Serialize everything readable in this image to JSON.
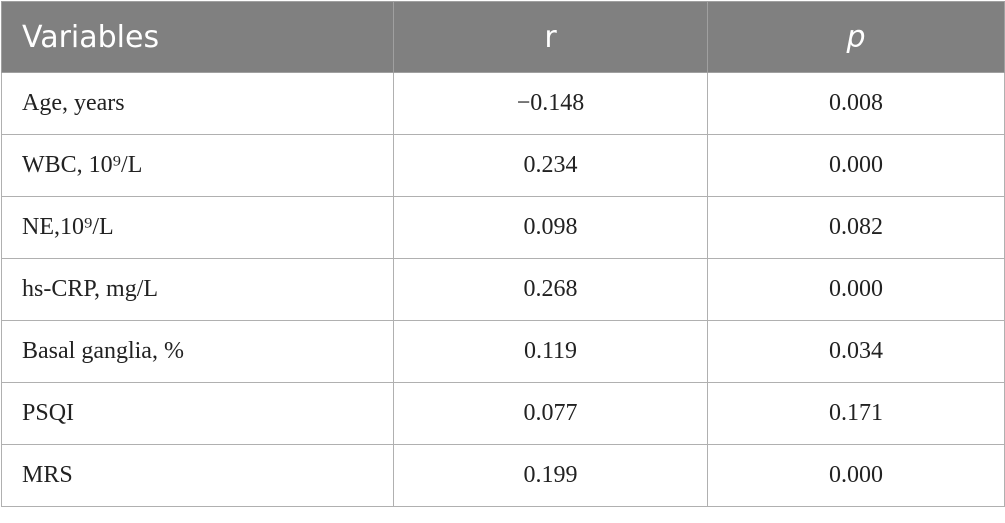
{
  "table": {
    "header": [
      "Variables",
      "r",
      "p"
    ],
    "rows": [
      [
        "Age, years",
        "−0.148",
        "0.008"
      ],
      [
        "WBC, 10⁹/L",
        "0.234",
        "0.000"
      ],
      [
        "NE,10⁹/L",
        "0.098",
        "0.082"
      ],
      [
        "hs-CRP, mg/L",
        "0.268",
        "0.000"
      ],
      [
        "Basal ganglia, %",
        "0.119",
        "0.034"
      ],
      [
        "PSQI",
        "0.077",
        "0.171"
      ],
      [
        "MRS",
        "0.199",
        "0.000"
      ]
    ]
  }
}
